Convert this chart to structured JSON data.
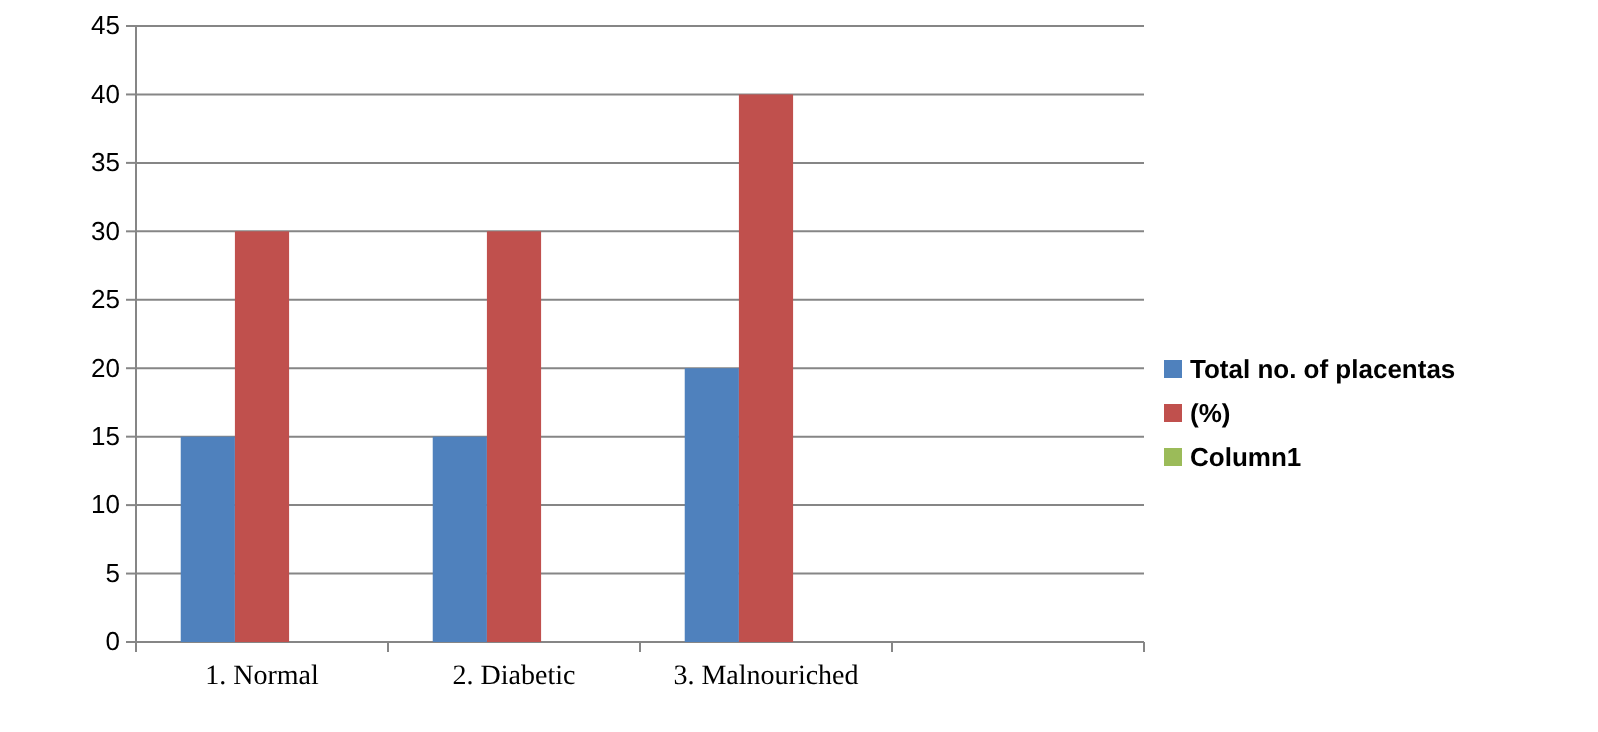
{
  "chart_data": {
    "type": "bar",
    "categories": [
      "1. Normal",
      "2. Diabetic",
      "3. Malnouriched",
      null
    ],
    "series": [
      {
        "name": "Total no. of placentas",
        "color": "#4f81bd",
        "values": [
          15,
          15,
          20,
          null
        ]
      },
      {
        "name": "(%)",
        "color": "#c0504d",
        "values": [
          30,
          30,
          40,
          null
        ]
      },
      {
        "name": "Column1",
        "color": "#9bbb59",
        "values": [
          null,
          null,
          null,
          null
        ]
      }
    ],
    "ylim": [
      0,
      45
    ],
    "yticks": [
      0,
      5,
      10,
      15,
      20,
      25,
      30,
      35,
      40,
      45
    ],
    "grid": "y",
    "legend": "right"
  }
}
